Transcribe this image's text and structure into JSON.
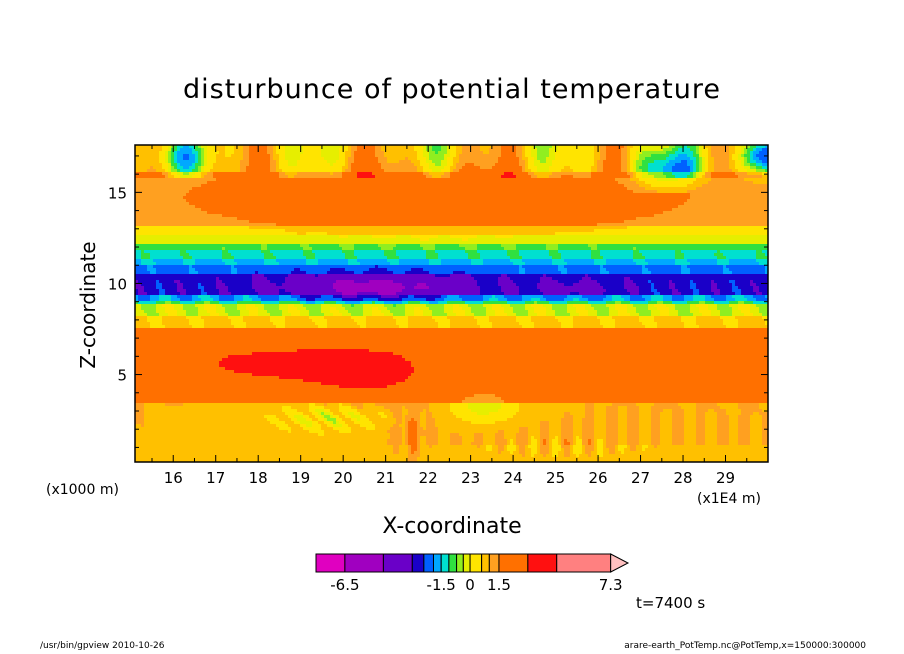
{
  "chart_data": {
    "type": "heatmap",
    "title": "disturbunce of potential temperature",
    "xlabel": "X-coordinate",
    "ylabel": "Z-coordinate",
    "x_unit": "(x1E4 m)",
    "y_unit": "(x1000 m)",
    "xlim": [
      15.1,
      30.0
    ],
    "ylim": [
      0.2,
      17.6
    ],
    "x_ticks": [
      16,
      17,
      18,
      19,
      20,
      21,
      22,
      23,
      24,
      25,
      26,
      27,
      28,
      29
    ],
    "y_ticks": [
      5,
      10,
      15
    ],
    "time_label": "t=7400 s",
    "colorbar": {
      "tick_labels": [
        "-6.5",
        "-1.5",
        "0",
        "1.5",
        "7.3"
      ],
      "tick_values": [
        -6.5,
        -1.5,
        0,
        1.5,
        7.3
      ],
      "range": [
        -8.0,
        8.2
      ],
      "levels": [
        {
          "from": -8.0,
          "to": -6.5,
          "color": "#e000c0"
        },
        {
          "from": -6.5,
          "to": -4.5,
          "color": "#a000c0"
        },
        {
          "from": -4.5,
          "to": -3.0,
          "color": "#6a00c8"
        },
        {
          "from": -3.0,
          "to": -2.4,
          "color": "#1a00c8"
        },
        {
          "from": -2.4,
          "to": -1.9,
          "color": "#0060ff"
        },
        {
          "from": -1.9,
          "to": -1.5,
          "color": "#00a8ff"
        },
        {
          "from": -1.5,
          "to": -1.1,
          "color": "#00e0d0"
        },
        {
          "from": -1.1,
          "to": -0.7,
          "color": "#30e040"
        },
        {
          "from": -0.7,
          "to": -0.35,
          "color": "#90ee20"
        },
        {
          "from": -0.35,
          "to": 0.0,
          "color": "#e6ee00"
        },
        {
          "from": 0.0,
          "to": 0.6,
          "color": "#ffe400"
        },
        {
          "from": 0.6,
          "to": 1.0,
          "color": "#ffc000"
        },
        {
          "from": 1.0,
          "to": 1.5,
          "color": "#ffa020"
        },
        {
          "from": 1.5,
          "to": 3.0,
          "color": "#ff7000"
        },
        {
          "from": 3.0,
          "to": 4.5,
          "color": "#ff1010"
        },
        {
          "from": 4.5,
          "to": 7.3,
          "color": "#ff8080"
        },
        {
          "from": 7.3,
          "to": 8.2,
          "color": "#ffc0c0"
        }
      ]
    }
  },
  "footer": {
    "left": "/usr/bin/gpview   2010-10-26",
    "right": "arare-earth_PotTemp.nc@PotTemp,x=150000:300000"
  }
}
